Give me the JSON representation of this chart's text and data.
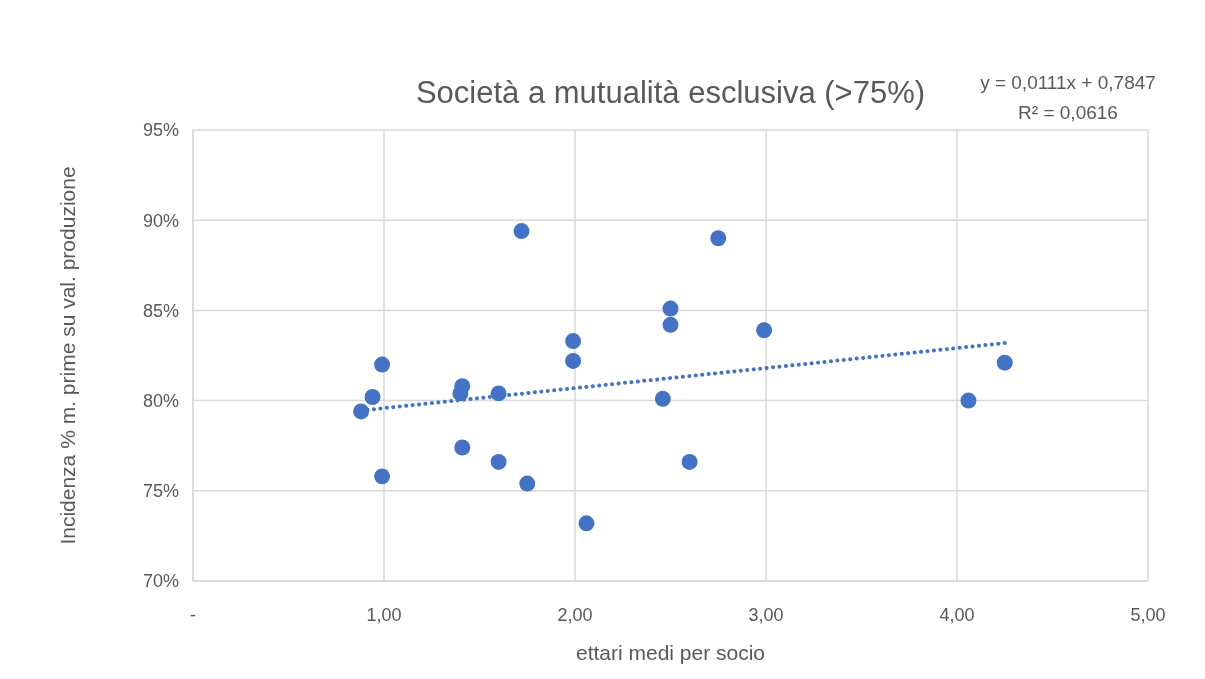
{
  "chart_data": {
    "type": "scatter",
    "title": "Società a mutualità esclusiva (>75%)",
    "xlabel": "ettari medi per socio",
    "ylabel": "Incidenza % m. prime su val. produzione",
    "xlim": [
      0,
      5
    ],
    "xticks": [
      {
        "value": 0,
        "label": "-"
      },
      {
        "value": 1,
        "label": "1,00"
      },
      {
        "value": 2,
        "label": "2,00"
      },
      {
        "value": 3,
        "label": "3,00"
      },
      {
        "value": 4,
        "label": "4,00"
      },
      {
        "value": 5,
        "label": "5,00"
      }
    ],
    "ylim": [
      70,
      95
    ],
    "yticks": [
      {
        "value": 70,
        "label": "70%"
      },
      {
        "value": 75,
        "label": "75%"
      },
      {
        "value": 80,
        "label": "80%"
      },
      {
        "value": 85,
        "label": "85%"
      },
      {
        "value": 90,
        "label": "90%"
      },
      {
        "value": 95,
        "label": "95%"
      }
    ],
    "grid": true,
    "marker": "circle",
    "annotations": [
      "y = 0,0111x + 0,7847",
      "R² = 0,0616"
    ],
    "series": [
      {
        "color": "#4472c4",
        "x": [
          0.88,
          0.94,
          0.99,
          0.99,
          1.41,
          1.4,
          1.41,
          1.6,
          1.6,
          1.72,
          1.75,
          1.99,
          1.99,
          2.06,
          2.46,
          2.5,
          2.5,
          2.6,
          2.75,
          2.99,
          4.06,
          4.25
        ],
        "values": [
          79.4,
          80.2,
          82.0,
          75.8,
          80.8,
          80.4,
          77.4,
          80.4,
          76.6,
          89.4,
          75.4,
          83.3,
          82.2,
          73.2,
          80.1,
          85.1,
          84.2,
          76.6,
          89.0,
          83.9,
          80.0,
          82.1
        ]
      },
      {
        "type": "line",
        "color": "#4472c4",
        "line_style": "dotted",
        "marker": "none",
        "x": [
          0.88,
          4.25
        ],
        "values": [
          79.45,
          83.19
        ]
      }
    ]
  }
}
